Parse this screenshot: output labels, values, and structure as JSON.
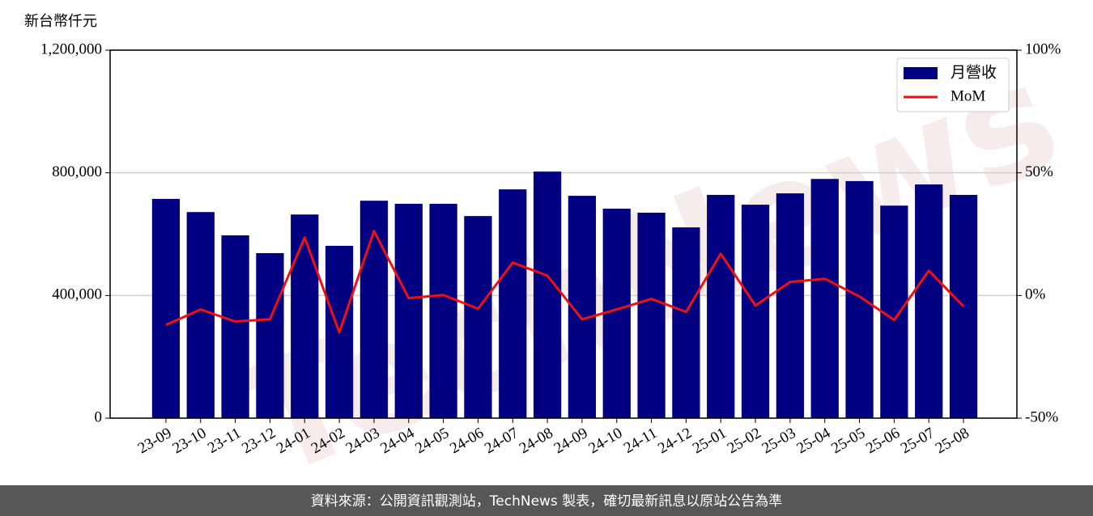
{
  "chart_data": {
    "type": "bar",
    "y_label": "新台幣仟元",
    "categories": [
      "23-09",
      "23-10",
      "23-11",
      "23-12",
      "24-01",
      "24-02",
      "24-03",
      "24-04",
      "24-05",
      "24-06",
      "24-07",
      "24-08",
      "24-09",
      "24-10",
      "24-11",
      "24-12",
      "25-01",
      "25-02",
      "25-03",
      "25-04",
      "25-05",
      "25-06",
      "25-07",
      "25-08"
    ],
    "series": [
      {
        "name": "月營收",
        "type": "bar",
        "color": "#000080",
        "values": [
          715000,
          672000,
          596000,
          538000,
          664000,
          562000,
          709000,
          699000,
          699000,
          659000,
          746000,
          804000,
          725000,
          683000,
          670000,
          622000,
          728000,
          696000,
          733000,
          780000,
          773000,
          693000,
          762000,
          728000
        ]
      },
      {
        "name": "MoM",
        "type": "line",
        "color": "#ee1111",
        "axis": "y2",
        "values": [
          -12.0,
          -5.7,
          -10.6,
          -9.7,
          23.6,
          -15.0,
          26.3,
          -1.1,
          0.2,
          -5.4,
          13.4,
          8.1,
          -9.7,
          -5.7,
          -1.4,
          -6.7,
          17.0,
          -4.1,
          5.5,
          6.8,
          -0.4,
          -10.0,
          10.1,
          -4.4
        ]
      }
    ],
    "ylim": [
      0,
      1200000
    ],
    "yticks": [
      0,
      {
        "value": 400000,
        "label": "400,000"
      },
      {
        "value": 800000,
        "label": "800,000"
      },
      {
        "value": 1200000,
        "label": "1,200,000"
      }
    ],
    "y2lim": [
      -50,
      100
    ],
    "y2ticks": [
      {
        "value": -50,
        "label": "-50%"
      },
      {
        "value": 0,
        "label": "0%"
      },
      {
        "value": 50,
        "label": "50%"
      },
      {
        "value": 100,
        "label": "100%"
      }
    ],
    "grid": true,
    "legend": "upper right",
    "watermark": "TechNews",
    "footer": "資料來源：公開資訊觀測站，TechNews 製表，確切最新訊息以原站公告為準"
  }
}
